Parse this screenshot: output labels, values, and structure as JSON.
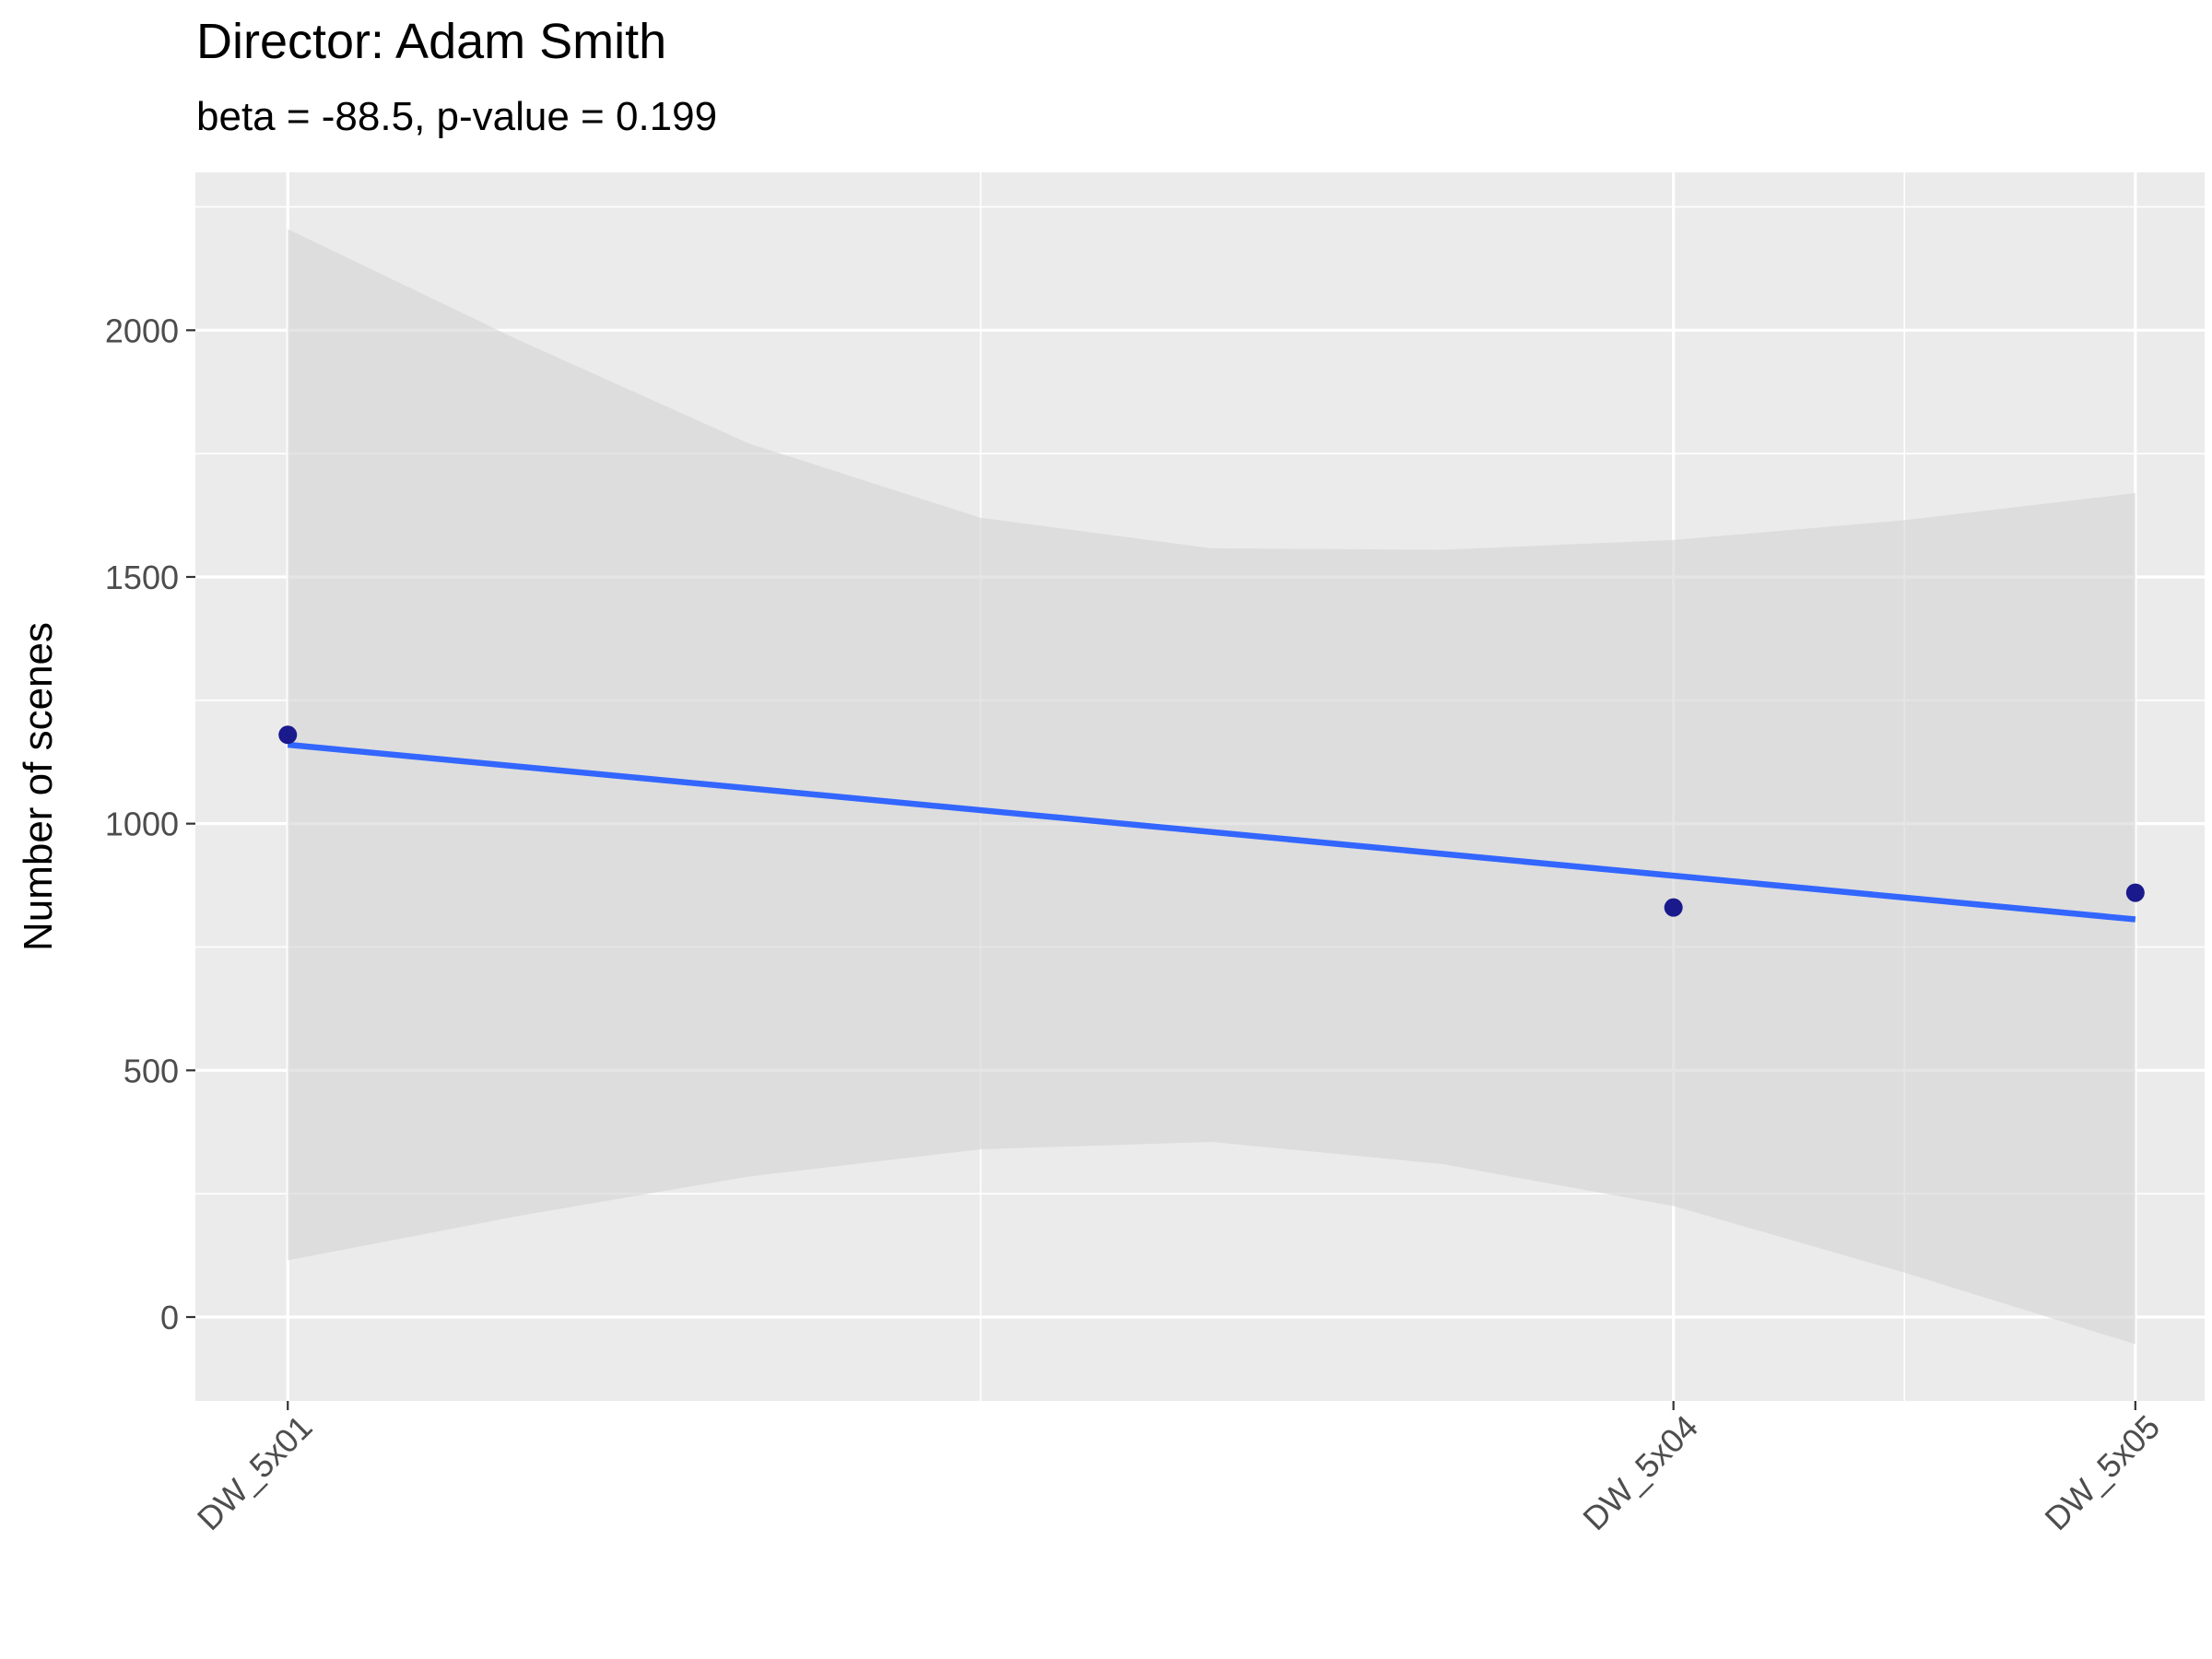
{
  "chart_data": {
    "type": "scatter",
    "title": "Director: Adam Smith",
    "subtitle": "beta = -88.5, p-value = 0.199",
    "xlabel": "",
    "ylabel": "Number of scenes",
    "x_tick_labels": [
      "DW_5x01",
      "DW_5x04",
      "DW_5x05"
    ],
    "x_positions": [
      1,
      4,
      5
    ],
    "x_range": [
      0.8,
      5.15
    ],
    "ylim": [
      -170,
      2320
    ],
    "y_ticks": [
      0,
      500,
      1000,
      1500,
      2000
    ],
    "y_minor_ticks": [
      250,
      750,
      1250,
      1750,
      2250
    ],
    "grid": true,
    "points": [
      {
        "x": 1,
        "label": "DW_5x01",
        "y": 1180
      },
      {
        "x": 4,
        "label": "DW_5x04",
        "y": 830
      },
      {
        "x": 5,
        "label": "DW_5x05",
        "y": 860
      }
    ],
    "trend_line": {
      "x": [
        1,
        5
      ],
      "y": [
        1160,
        806
      ]
    },
    "confidence_band": {
      "x": [
        1,
        1.5,
        2,
        2.5,
        3,
        3.5,
        4,
        4.5,
        5
      ],
      "upper": [
        2205,
        1980,
        1770,
        1620,
        1558,
        1555,
        1575,
        1615,
        1670
      ],
      "lower": [
        115,
        205,
        285,
        340,
        355,
        310,
        225,
        90,
        -55
      ]
    },
    "colors": {
      "panel_background": "#EBEBEB",
      "grid": "#FFFFFF",
      "points": "#1A1A8C",
      "trend_line": "#3366FF",
      "confidence_band": "#D3D3D3"
    }
  }
}
